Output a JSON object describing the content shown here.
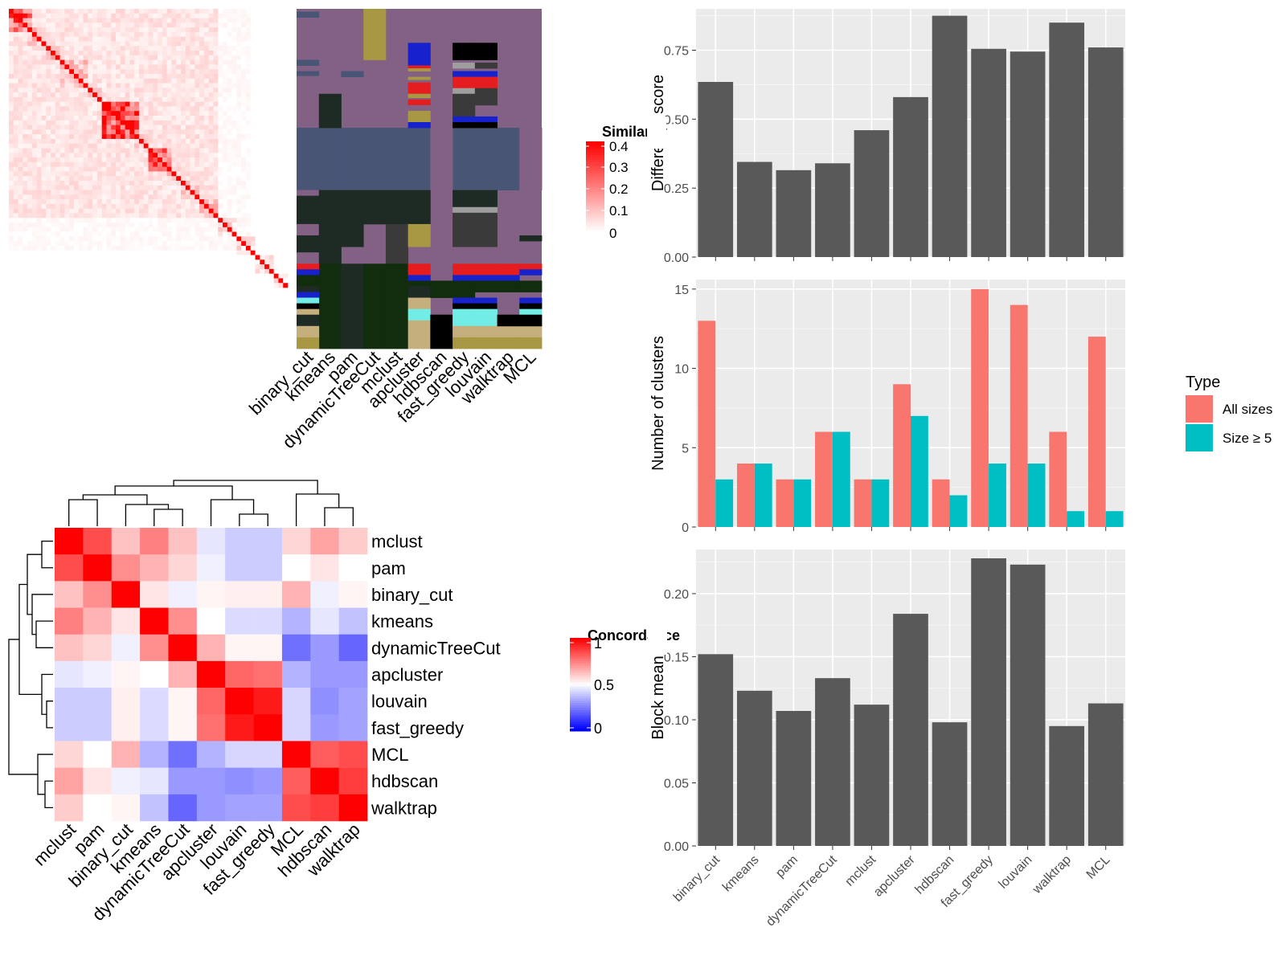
{
  "methods": [
    "binary_cut",
    "kmeans",
    "pam",
    "dynamicTreeCut",
    "mclust",
    "apcluster",
    "hdbscan",
    "fast_greedy",
    "louvain",
    "walktrap",
    "MCL"
  ],
  "similarity_legend": {
    "title": "Similarity",
    "ticks": [
      "0.4",
      "0.3",
      "0.2",
      "0.1",
      "0"
    ]
  },
  "concordance_legend": {
    "title": "Concordance",
    "ticks": [
      "1",
      "0.5",
      "0"
    ]
  },
  "concordance_order": [
    "mclust",
    "pam",
    "binary_cut",
    "kmeans",
    "dynamicTreeCut",
    "apcluster",
    "louvain",
    "fast_greedy",
    "MCL",
    "hdbscan",
    "walktrap"
  ],
  "type_legend": {
    "title": "Type",
    "items": [
      "All sizes",
      "Size ≥ 5"
    ],
    "colors": [
      "#f8766d",
      "#00bfc4"
    ]
  },
  "colors": {
    "bar": "#595959",
    "panel": "#ebebeb",
    "grid": "#ffffff"
  },
  "chart_data": [
    {
      "type": "heatmap",
      "name": "similarity matrix",
      "size": 60,
      "value_range": [
        0,
        0.4
      ],
      "diagonal_value": 0.4,
      "legend_title": "Similarity"
    },
    {
      "type": "heatmap",
      "name": "cluster assignments per method",
      "columns": [
        "binary_cut",
        "kmeans",
        "pam",
        "dynamicTreeCut",
        "mclust",
        "apcluster",
        "hdbscan",
        "fast_greedy",
        "louvain",
        "walktrap",
        "MCL"
      ]
    },
    {
      "type": "heatmap",
      "name": "method concordance",
      "rows": [
        "mclust",
        "pam",
        "binary_cut",
        "kmeans",
        "dynamicTreeCut",
        "apcluster",
        "louvain",
        "fast_greedy",
        "MCL",
        "hdbscan",
        "walktrap"
      ],
      "columns": [
        "mclust",
        "pam",
        "binary_cut",
        "kmeans",
        "dynamicTreeCut",
        "apcluster",
        "louvain",
        "fast_greedy",
        "MCL",
        "hdbscan",
        "walktrap"
      ],
      "values": [
        [
          1.0,
          0.85,
          0.62,
          0.75,
          0.62,
          0.45,
          0.4,
          0.4,
          0.58,
          0.68,
          0.6
        ],
        [
          0.85,
          1.0,
          0.72,
          0.65,
          0.58,
          0.47,
          0.4,
          0.4,
          0.5,
          0.55,
          0.5
        ],
        [
          0.62,
          0.72,
          1.0,
          0.55,
          0.47,
          0.52,
          0.53,
          0.53,
          0.65,
          0.47,
          0.52
        ],
        [
          0.75,
          0.65,
          0.55,
          1.0,
          0.72,
          0.5,
          0.43,
          0.43,
          0.35,
          0.45,
          0.38
        ],
        [
          0.62,
          0.58,
          0.47,
          0.72,
          1.0,
          0.65,
          0.52,
          0.52,
          0.22,
          0.3,
          0.2
        ],
        [
          0.45,
          0.47,
          0.52,
          0.5,
          0.65,
          1.0,
          0.8,
          0.78,
          0.35,
          0.3,
          0.3
        ],
        [
          0.4,
          0.4,
          0.53,
          0.43,
          0.52,
          0.8,
          1.0,
          0.95,
          0.42,
          0.28,
          0.32
        ],
        [
          0.4,
          0.4,
          0.53,
          0.43,
          0.52,
          0.78,
          0.95,
          1.0,
          0.42,
          0.3,
          0.32
        ],
        [
          0.58,
          0.5,
          0.65,
          0.35,
          0.22,
          0.35,
          0.42,
          0.42,
          1.0,
          0.82,
          0.85
        ],
        [
          0.68,
          0.55,
          0.47,
          0.45,
          0.3,
          0.3,
          0.28,
          0.3,
          0.82,
          1.0,
          0.88
        ],
        [
          0.6,
          0.5,
          0.52,
          0.38,
          0.2,
          0.3,
          0.32,
          0.32,
          0.85,
          0.88,
          1.0
        ]
      ],
      "legend_title": "Concordance",
      "value_range": [
        0,
        1
      ]
    },
    {
      "type": "bar",
      "categories": [
        "binary_cut",
        "kmeans",
        "pam",
        "dynamicTreeCut",
        "mclust",
        "apcluster",
        "hdbscan",
        "fast_greedy",
        "louvain",
        "walktrap",
        "MCL"
      ],
      "values": [
        0.635,
        0.345,
        0.315,
        0.34,
        0.46,
        0.58,
        0.875,
        0.755,
        0.745,
        0.85,
        0.76
      ],
      "ylabel": "Difference score",
      "ylim": [
        0,
        0.9
      ],
      "yticks": [
        0.0,
        0.25,
        0.5,
        0.75
      ],
      "yticklabels": [
        "0.00",
        "0.25",
        "0.50",
        "0.75"
      ],
      "grid": true
    },
    {
      "type": "bar",
      "categories": [
        "binary_cut",
        "kmeans",
        "pam",
        "dynamicTreeCut",
        "mclust",
        "apcluster",
        "hdbscan",
        "fast_greedy",
        "louvain",
        "walktrap",
        "MCL"
      ],
      "series": [
        {
          "name": "All sizes",
          "values": [
            13,
            4,
            3,
            6,
            3,
            9,
            3,
            15,
            14,
            6,
            12
          ]
        },
        {
          "name": "Size ≥ 5",
          "values": [
            3,
            4,
            3,
            6,
            3,
            7,
            2,
            4,
            4,
            1,
            1
          ]
        }
      ],
      "ylabel": "Number of clusters",
      "legend_title": "Type",
      "ylim": [
        0,
        15.6
      ],
      "yticks": [
        0,
        5,
        10,
        15
      ],
      "yticklabels": [
        "0",
        "5",
        "10",
        "15"
      ],
      "grid": true,
      "legend": "right"
    },
    {
      "type": "bar",
      "categories": [
        "binary_cut",
        "kmeans",
        "pam",
        "dynamicTreeCut",
        "mclust",
        "apcluster",
        "hdbscan",
        "fast_greedy",
        "louvain",
        "walktrap",
        "MCL"
      ],
      "values": [
        0.152,
        0.123,
        0.107,
        0.133,
        0.112,
        0.184,
        0.098,
        0.228,
        0.223,
        0.095,
        0.113
      ],
      "ylabel": "Block mean",
      "ylim": [
        0,
        0.235
      ],
      "yticks": [
        0.0,
        0.05,
        0.1,
        0.15,
        0.2
      ],
      "yticklabels": [
        "0.00",
        "0.05",
        "0.10",
        "0.15",
        "0.20"
      ],
      "grid": true
    }
  ]
}
